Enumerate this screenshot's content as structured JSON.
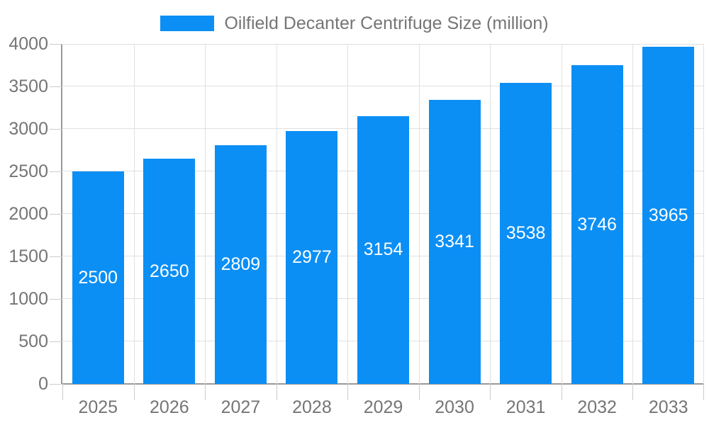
{
  "legend": {
    "label": "Oilfield Decanter Centrifuge Size (million)"
  },
  "chart_data": {
    "type": "bar",
    "title": "Oilfield Decanter Centrifuge Size (million)",
    "categories": [
      "2025",
      "2026",
      "2027",
      "2028",
      "2029",
      "2030",
      "2031",
      "2032",
      "2033"
    ],
    "values": [
      2500,
      2650,
      2809,
      2977,
      3154,
      3341,
      3538,
      3746,
      3965
    ],
    "xlabel": "",
    "ylabel": "",
    "ylim": [
      0,
      4000
    ],
    "yticks": [
      0,
      500,
      1000,
      1500,
      2000,
      2500,
      3000,
      3500,
      4000
    ],
    "grid": true,
    "legend_position": "top",
    "value_labels": "inside-center",
    "colors": {
      "bar": "#0b8ff5",
      "value_text": "#ffffff",
      "axis_text": "#757575",
      "axis_line": "#999999",
      "gridline": "#e0e0e0",
      "tick": "#cccccc",
      "background": "#ffffff"
    }
  }
}
